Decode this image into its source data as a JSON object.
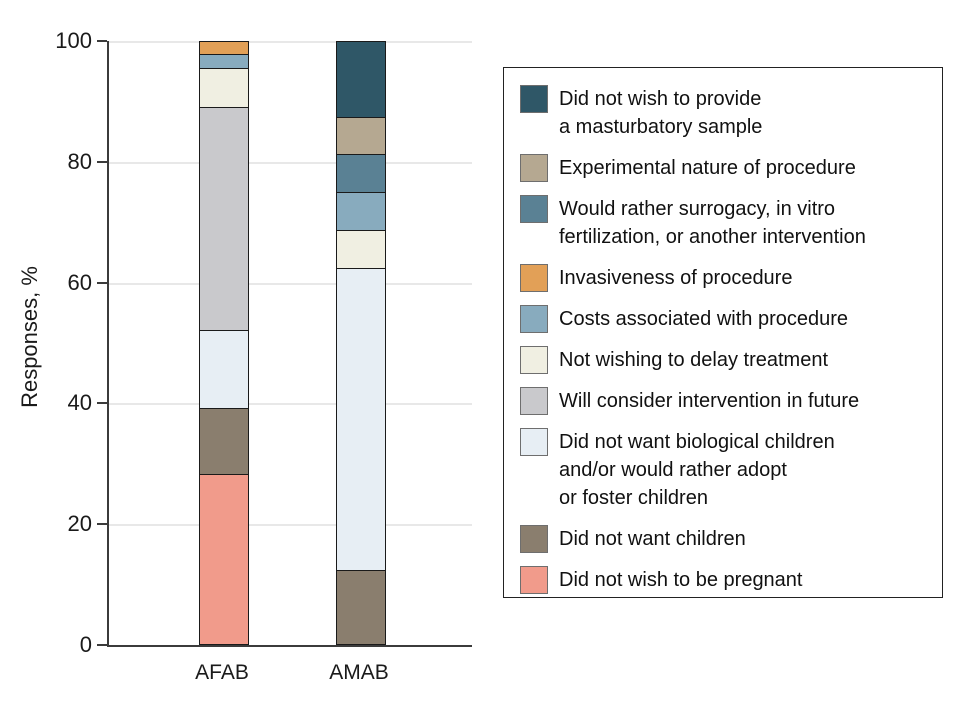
{
  "chart_data": {
    "type": "bar",
    "subtype": "stacked-vertical",
    "title": "",
    "xlabel": "",
    "ylabel": "Responses, %",
    "categories": [
      "AFAB",
      "AMAB"
    ],
    "ylim": [
      0,
      100
    ],
    "yticks": [
      0,
      20,
      40,
      60,
      80,
      100
    ],
    "ytick_labels": [
      "0",
      "20",
      "40",
      "60",
      "80",
      "100"
    ],
    "grid": "horizontal",
    "legend_position": "right",
    "series": [
      {
        "name": "Did not wish to provide a masturbatory sample",
        "label_lines": [
          "Did not wish to provide",
          "a masturbatory sample"
        ],
        "color": "#2F5767",
        "values": [
          0,
          12.5
        ]
      },
      {
        "name": "Experimental nature of procedure",
        "label_lines": [
          "Experimental nature of procedure"
        ],
        "color": "#B5A891",
        "values": [
          0,
          6.25
        ]
      },
      {
        "name": "Would rather surrogacy, in vitro fertilization, or another intervention",
        "label_lines": [
          "Would rather surrogacy, in vitro",
          "fertilization, or another intervention"
        ],
        "color": "#5A8194",
        "values": [
          0,
          6.25
        ]
      },
      {
        "name": "Invasiveness of procedure",
        "label_lines": [
          "Invasiveness of procedure"
        ],
        "color": "#E2A057",
        "values": [
          2.2,
          0
        ]
      },
      {
        "name": "Costs associated with procedure",
        "label_lines": [
          "Costs associated with procedure"
        ],
        "color": "#88ABBE",
        "values": [
          2.2,
          6.25
        ]
      },
      {
        "name": "Not wishing to delay treatment",
        "label_lines": [
          "Not wishing to delay treatment"
        ],
        "color": "#F0EFE2",
        "values": [
          6.5,
          6.25
        ]
      },
      {
        "name": "Will consider intervention in future",
        "label_lines": [
          "Will consider intervention in future"
        ],
        "color": "#C9C9CC",
        "values": [
          36.9,
          0
        ]
      },
      {
        "name": "Did not want biological children and/or would rather adopt or foster children",
        "label_lines": [
          "Did not want biological children",
          "and/or would rather adopt",
          "or foster children"
        ],
        "color": "#E7EEF4",
        "values": [
          13.0,
          50.0
        ]
      },
      {
        "name": "Did not want children",
        "label_lines": [
          "Did not want children"
        ],
        "color": "#8A7E6E",
        "values": [
          10.9,
          12.5
        ]
      },
      {
        "name": "Did not wish to be pregnant",
        "label_lines": [
          "Did not wish to be pregnant"
        ],
        "color": "#F19B8B",
        "values": [
          28.3,
          0
        ]
      }
    ]
  },
  "style": {
    "grid_color": "#e8e8e8",
    "spine_color": "#3b3b3b",
    "bar_border_color": "#1a1a1a",
    "text_color": "#1a1a1a",
    "legend_border_color": "#222222",
    "swatch_border_color": "#6e6e6e",
    "background": "#ffffff"
  }
}
